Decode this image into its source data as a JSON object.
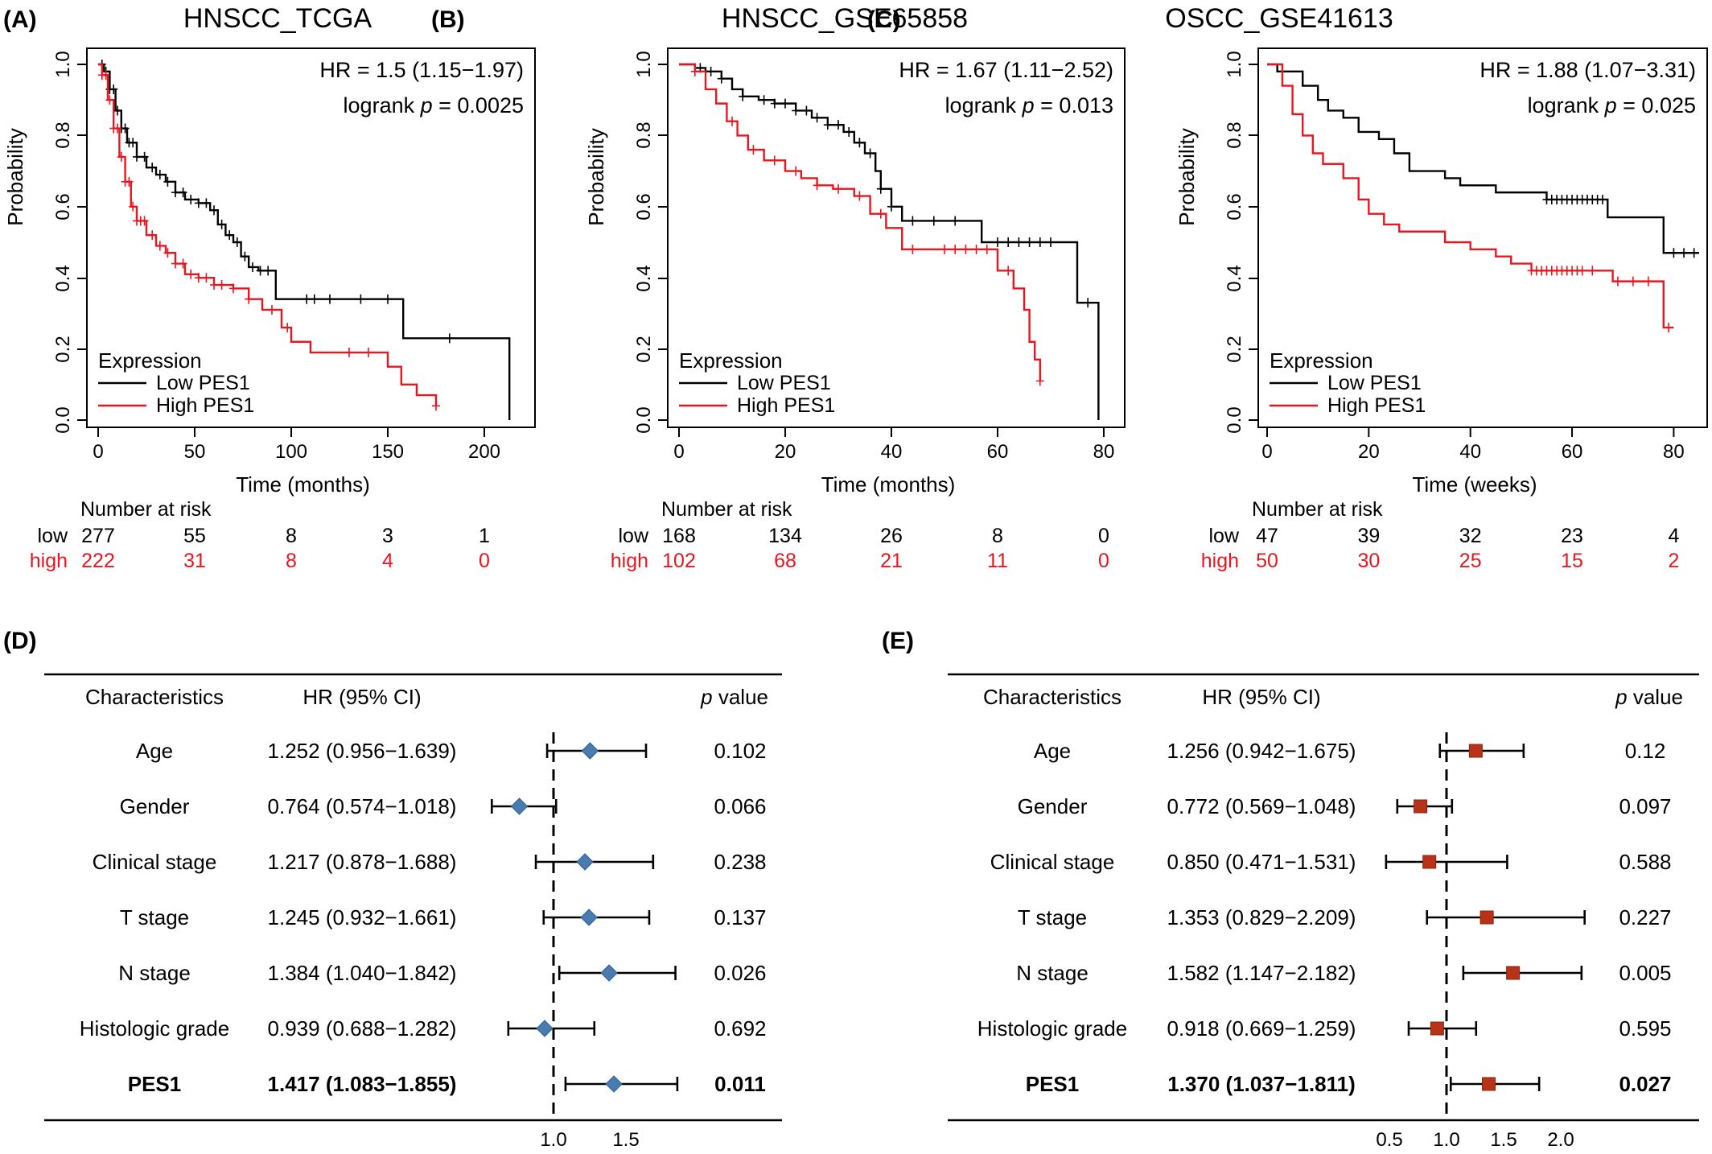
{
  "colors": {
    "low": "#000000",
    "high": "#e8161e",
    "diamond": "#4a7bb0",
    "square": "#b83218"
  },
  "chart_data": [
    {
      "type": "line",
      "panel": "(A)",
      "title": "HNSCC_TCGA",
      "hr_text": "HR = 1.5 (1.15−1.97)",
      "logrank_prefix": "logrank ",
      "logrank_p": "p",
      "logrank_value": " = 0.0025",
      "xlabel": "Time (months)",
      "ylabel": "Probability",
      "xlim": [
        0,
        220
      ],
      "ylim": [
        0,
        1
      ],
      "xticks": [
        0,
        50,
        100,
        150,
        200
      ],
      "yticks": [
        "0.0",
        "0.2",
        "0.4",
        "0.6",
        "0.8",
        "1.0"
      ],
      "legend_title": "Expression",
      "legend_position": "bottom-left",
      "series": [
        {
          "name": "Low PES1",
          "color": "#000000",
          "points": [
            [
              0,
              1
            ],
            [
              3,
              0.98
            ],
            [
              6,
              0.93
            ],
            [
              9,
              0.87
            ],
            [
              12,
              0.82
            ],
            [
              15,
              0.78
            ],
            [
              20,
              0.74
            ],
            [
              25,
              0.71
            ],
            [
              30,
              0.69
            ],
            [
              35,
              0.67
            ],
            [
              40,
              0.64
            ],
            [
              45,
              0.62
            ],
            [
              52,
              0.61
            ],
            [
              58,
              0.59
            ],
            [
              62,
              0.55
            ],
            [
              66,
              0.52
            ],
            [
              70,
              0.5
            ],
            [
              74,
              0.46
            ],
            [
              78,
              0.43
            ],
            [
              83,
              0.42
            ],
            [
              88,
              0.42
            ],
            [
              92,
              0.34
            ],
            [
              130,
              0.34
            ],
            [
              158,
              0.34
            ],
            [
              158,
              0.23
            ],
            [
              213,
              0.23
            ],
            [
              213,
              0
            ]
          ],
          "censor": [
            2,
            4,
            6,
            8,
            10,
            12,
            14,
            16,
            18,
            20,
            24,
            28,
            32,
            36,
            40,
            44,
            48,
            52,
            56,
            60,
            64,
            68,
            72,
            76,
            80,
            84,
            88,
            108,
            112,
            120,
            136,
            150,
            182
          ]
        },
        {
          "name": "High PES1",
          "color": "#e8161e",
          "points": [
            [
              0,
              1
            ],
            [
              2,
              0.97
            ],
            [
              5,
              0.9
            ],
            [
              8,
              0.82
            ],
            [
              11,
              0.74
            ],
            [
              14,
              0.67
            ],
            [
              17,
              0.6
            ],
            [
              20,
              0.56
            ],
            [
              25,
              0.52
            ],
            [
              30,
              0.49
            ],
            [
              35,
              0.47
            ],
            [
              40,
              0.44
            ],
            [
              45,
              0.41
            ],
            [
              52,
              0.4
            ],
            [
              60,
              0.38
            ],
            [
              70,
              0.37
            ],
            [
              78,
              0.34
            ],
            [
              85,
              0.31
            ],
            [
              95,
              0.26
            ],
            [
              100,
              0.22
            ],
            [
              110,
              0.19
            ],
            [
              145,
              0.19
            ],
            [
              150,
              0.15
            ],
            [
              157,
              0.1
            ],
            [
              165,
              0.07
            ],
            [
              175,
              0.04
            ]
          ],
          "censor": [
            2,
            4,
            6,
            8,
            10,
            12,
            14,
            16,
            18,
            20,
            22,
            24,
            28,
            32,
            36,
            40,
            44,
            48,
            52,
            56,
            60,
            64,
            70,
            78,
            90,
            98,
            130,
            140,
            175
          ]
        }
      ],
      "risk_label": "Number at risk",
      "risk_rows": [
        {
          "label": "low",
          "values": [
            "277",
            "55",
            "8",
            "3",
            "1"
          ]
        },
        {
          "label": "high",
          "values": [
            "222",
            "31",
            "8",
            "4",
            "0"
          ]
        }
      ]
    },
    {
      "type": "line",
      "panel": "(B)",
      "title": "HNSCC_GSE65858",
      "hr_text": "HR = 1.67 (1.11−2.52)",
      "logrank_prefix": "logrank ",
      "logrank_p": "p",
      "logrank_value": " = 0.013",
      "xlabel": "Time (months)",
      "ylabel": "Probability",
      "xlim": [
        0,
        80
      ],
      "ylim": [
        0,
        1
      ],
      "xticks": [
        0,
        20,
        40,
        60,
        80
      ],
      "yticks": [
        "0.0",
        "0.2",
        "0.4",
        "0.6",
        "0.8",
        "1.0"
      ],
      "legend_title": "Expression",
      "legend_position": "bottom-left",
      "series": [
        {
          "name": "Low PES1",
          "color": "#000000",
          "points": [
            [
              0,
              1
            ],
            [
              3,
              0.99
            ],
            [
              5,
              0.98
            ],
            [
              8,
              0.96
            ],
            [
              10,
              0.93
            ],
            [
              12,
              0.91
            ],
            [
              15,
              0.9
            ],
            [
              18,
              0.89
            ],
            [
              22,
              0.87
            ],
            [
              25,
              0.85
            ],
            [
              28,
              0.83
            ],
            [
              31,
              0.81
            ],
            [
              33,
              0.78
            ],
            [
              35,
              0.75
            ],
            [
              37,
              0.7
            ],
            [
              38,
              0.65
            ],
            [
              40,
              0.6
            ],
            [
              42,
              0.56
            ],
            [
              55,
              0.56
            ],
            [
              57,
              0.5
            ],
            [
              75,
              0.5
            ],
            [
              75,
              0.33
            ],
            [
              79,
              0.33
            ],
            [
              79,
              0
            ]
          ],
          "censor": [
            4,
            6,
            8,
            12,
            16,
            18,
            20,
            22,
            24,
            26,
            28,
            30,
            32,
            34,
            36,
            38,
            40,
            44,
            48,
            52,
            60,
            62,
            64,
            66,
            68,
            70,
            77
          ]
        },
        {
          "name": "High PES1",
          "color": "#e8161e",
          "points": [
            [
              0,
              1
            ],
            [
              3,
              0.98
            ],
            [
              5,
              0.93
            ],
            [
              7,
              0.89
            ],
            [
              9,
              0.84
            ],
            [
              11,
              0.8
            ],
            [
              13,
              0.76
            ],
            [
              16,
              0.73
            ],
            [
              20,
              0.7
            ],
            [
              23,
              0.68
            ],
            [
              26,
              0.66
            ],
            [
              29,
              0.65
            ],
            [
              33,
              0.63
            ],
            [
              36,
              0.58
            ],
            [
              39,
              0.54
            ],
            [
              42,
              0.48
            ],
            [
              58,
              0.48
            ],
            [
              60,
              0.42
            ],
            [
              63,
              0.37
            ],
            [
              65,
              0.31
            ],
            [
              66,
              0.22
            ],
            [
              67,
              0.17
            ],
            [
              68,
              0.11
            ]
          ],
          "censor": [
            3,
            10,
            14,
            18,
            22,
            26,
            30,
            34,
            38,
            44,
            50,
            52,
            54,
            56,
            58,
            62,
            68
          ]
        }
      ],
      "risk_label": "Number at risk",
      "risk_rows": [
        {
          "label": "low",
          "values": [
            "168",
            "134",
            "26",
            "8",
            "0"
          ]
        },
        {
          "label": "high",
          "values": [
            "102",
            "68",
            "21",
            "11",
            "0"
          ]
        }
      ]
    },
    {
      "type": "line",
      "panel": "(C)",
      "title": "OSCC_GSE41613",
      "hr_text": "HR = 1.88 (1.07−3.31)",
      "logrank_prefix": "logrank ",
      "logrank_p": "p",
      "logrank_value": " = 0.025",
      "xlabel": "Time (weeks)",
      "ylabel": "Probability",
      "xlim": [
        0,
        85
      ],
      "ylim": [
        0,
        1
      ],
      "xticks": [
        0,
        20,
        40,
        60,
        80
      ],
      "yticks": [
        "0.0",
        "0.2",
        "0.4",
        "0.6",
        "0.8",
        "1.0"
      ],
      "legend_title": "Expression",
      "legend_position": "bottom-left",
      "series": [
        {
          "name": "Low PES1",
          "color": "#000000",
          "points": [
            [
              0,
              1
            ],
            [
              2,
              0.98
            ],
            [
              7,
              0.94
            ],
            [
              10,
              0.9
            ],
            [
              12,
              0.87
            ],
            [
              15,
              0.85
            ],
            [
              18,
              0.81
            ],
            [
              22,
              0.79
            ],
            [
              25,
              0.75
            ],
            [
              28,
              0.7
            ],
            [
              35,
              0.68
            ],
            [
              38,
              0.66
            ],
            [
              45,
              0.64
            ],
            [
              55,
              0.62
            ],
            [
              66,
              0.62
            ],
            [
              67,
              0.57
            ],
            [
              78,
              0.47
            ],
            [
              85,
              0.47
            ]
          ],
          "censor": [
            55,
            56,
            57,
            58,
            59,
            60,
            61,
            62,
            63,
            64,
            65,
            66,
            80,
            82,
            84
          ]
        },
        {
          "name": "High PES1",
          "color": "#e8161e",
          "points": [
            [
              0,
              1
            ],
            [
              3,
              0.94
            ],
            [
              5,
              0.86
            ],
            [
              7,
              0.8
            ],
            [
              9,
              0.75
            ],
            [
              11,
              0.72
            ],
            [
              15,
              0.68
            ],
            [
              18,
              0.62
            ],
            [
              20,
              0.58
            ],
            [
              23,
              0.55
            ],
            [
              26,
              0.53
            ],
            [
              35,
              0.5
            ],
            [
              40,
              0.48
            ],
            [
              45,
              0.46
            ],
            [
              48,
              0.44
            ],
            [
              52,
              0.42
            ],
            [
              65,
              0.42
            ],
            [
              68,
              0.39
            ],
            [
              77,
              0.39
            ],
            [
              78,
              0.26
            ],
            [
              80,
              0.26
            ]
          ],
          "censor": [
            52,
            53,
            54,
            55,
            56,
            57,
            58,
            59,
            60,
            61,
            62,
            64,
            69,
            72,
            75,
            79
          ]
        }
      ],
      "risk_label": "Number at risk",
      "risk_rows": [
        {
          "label": "low",
          "values": [
            "47",
            "39",
            "32",
            "23",
            "4"
          ]
        },
        {
          "label": "high",
          "values": [
            "50",
            "30",
            "25",
            "15",
            "2"
          ]
        }
      ]
    },
    {
      "type": "forest",
      "panel": "(D)",
      "col_headers": {
        "characteristic": "Characteristics",
        "hr": "HR (95% CI)",
        "p_italic": "p",
        "p_rest": " value"
      },
      "xticks": [
        {
          "value": 1.0,
          "label": "1.0"
        },
        {
          "value": 1.5,
          "label": "1.5"
        }
      ],
      "reference_line": 1.0,
      "marker": "diamond",
      "rows": [
        {
          "name": "Age",
          "hr_ci": "1.252 (0.956−1.639)",
          "hr": 1.252,
          "lower": 0.956,
          "upper": 1.639,
          "p": "0.102",
          "bold": false
        },
        {
          "name": "Gender",
          "hr_ci": "0.764 (0.574−1.018)",
          "hr": 0.764,
          "lower": 0.574,
          "upper": 1.018,
          "p": "0.066",
          "bold": false
        },
        {
          "name": "Clinical stage",
          "hr_ci": "1.217 (0.878−1.688)",
          "hr": 1.217,
          "lower": 0.878,
          "upper": 1.688,
          "p": "0.238",
          "bold": false
        },
        {
          "name": "T stage",
          "hr_ci": "1.245 (0.932−1.661)",
          "hr": 1.245,
          "lower": 0.932,
          "upper": 1.661,
          "p": "0.137",
          "bold": false
        },
        {
          "name": "N stage",
          "hr_ci": "1.384 (1.040−1.842)",
          "hr": 1.384,
          "lower": 1.04,
          "upper": 1.842,
          "p": "0.026",
          "bold": false
        },
        {
          "name": "Histologic grade",
          "hr_ci": "0.939 (0.688−1.282)",
          "hr": 0.939,
          "lower": 0.688,
          "upper": 1.282,
          "p": "0.692",
          "bold": false
        },
        {
          "name": "PES1",
          "hr_ci": "1.417 (1.083−1.855)",
          "hr": 1.417,
          "lower": 1.083,
          "upper": 1.855,
          "p": "0.011",
          "bold": true
        }
      ]
    },
    {
      "type": "forest",
      "panel": "(E)",
      "col_headers": {
        "characteristic": "Characteristics",
        "hr": "HR (95% CI)",
        "p_italic": "p",
        "p_rest": " value"
      },
      "xticks": [
        {
          "value": 0.5,
          "label": "0.5"
        },
        {
          "value": 1.0,
          "label": "1.0"
        },
        {
          "value": 1.5,
          "label": "1.5"
        },
        {
          "value": 2.0,
          "label": "2.0"
        }
      ],
      "reference_line": 1.0,
      "marker": "square",
      "rows": [
        {
          "name": "Age",
          "hr_ci": "1.256 (0.942−1.675)",
          "hr": 1.256,
          "lower": 0.942,
          "upper": 1.675,
          "p": "0.12",
          "bold": false
        },
        {
          "name": "Gender",
          "hr_ci": "0.772 (0.569−1.048)",
          "hr": 0.772,
          "lower": 0.569,
          "upper": 1.048,
          "p": "0.097",
          "bold": false
        },
        {
          "name": "Clinical stage",
          "hr_ci": "0.850 (0.471−1.531)",
          "hr": 0.85,
          "lower": 0.471,
          "upper": 1.531,
          "p": "0.588",
          "bold": false
        },
        {
          "name": "T stage",
          "hr_ci": "1.353 (0.829−2.209)",
          "hr": 1.353,
          "lower": 0.829,
          "upper": 2.209,
          "p": "0.227",
          "bold": false
        },
        {
          "name": "N stage",
          "hr_ci": "1.582 (1.147−2.182)",
          "hr": 1.582,
          "lower": 1.147,
          "upper": 2.182,
          "p": "0.005",
          "bold": false
        },
        {
          "name": "Histologic grade",
          "hr_ci": "0.918 (0.669−1.259)",
          "hr": 0.918,
          "lower": 0.669,
          "upper": 1.259,
          "p": "0.595",
          "bold": false
        },
        {
          "name": "PES1",
          "hr_ci": "1.370 (1.037−1.811)",
          "hr": 1.37,
          "lower": 1.037,
          "upper": 1.811,
          "p": "0.027",
          "bold": true
        }
      ]
    }
  ]
}
